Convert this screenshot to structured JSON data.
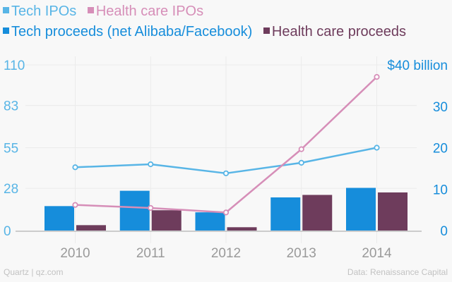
{
  "chart_data": {
    "type": "bar+line",
    "title": "",
    "categories": [
      "2010",
      "2011",
      "2012",
      "2013",
      "2014"
    ],
    "left_axis": {
      "label": "IPOs",
      "ticks": [
        0,
        28,
        55,
        83,
        110
      ],
      "range": [
        0,
        110
      ]
    },
    "right_axis": {
      "label": "$ billion",
      "ticks": [
        "0",
        "10",
        "20",
        "30",
        "$40 billion"
      ],
      "tick_values": [
        0,
        10,
        20,
        30,
        40
      ],
      "range": [
        0,
        40
      ]
    },
    "series": [
      {
        "name": "Tech IPOs",
        "type": "line",
        "axis": "left",
        "color": "#58b5e6",
        "values": [
          42,
          44,
          38,
          45,
          55
        ]
      },
      {
        "name": "Health care IPOs",
        "type": "line",
        "axis": "left",
        "color": "#d68eb8",
        "values": [
          17,
          15,
          12,
          54,
          102
        ]
      },
      {
        "name": "Tech proceeds (net Alibaba/Facebook)",
        "type": "bar",
        "axis": "right",
        "color": "#168ddb",
        "values": [
          5.9,
          9.6,
          4.4,
          8.0,
          10.3
        ]
      },
      {
        "name": "Health care proceeds",
        "type": "bar",
        "axis": "right",
        "color": "#6e3c5c",
        "values": [
          1.3,
          4.9,
          0.8,
          8.6,
          9.2
        ]
      }
    ],
    "grid": true,
    "legend_position": "top-left"
  },
  "legend": {
    "row1": [
      {
        "label": "Tech IPOs",
        "color": "#58b5e6"
      },
      {
        "label": "Health care IPOs",
        "color": "#d68eb8"
      }
    ],
    "row2": [
      {
        "label": "Tech proceeds (net Alibaba/Facebook)",
        "color": "#168ddb"
      },
      {
        "label": "Health care proceeds",
        "color": "#6e3c5c"
      }
    ]
  },
  "footer": {
    "source_left": "Quartz | qz.com",
    "source_right": "Data: Renaissance Capital"
  }
}
